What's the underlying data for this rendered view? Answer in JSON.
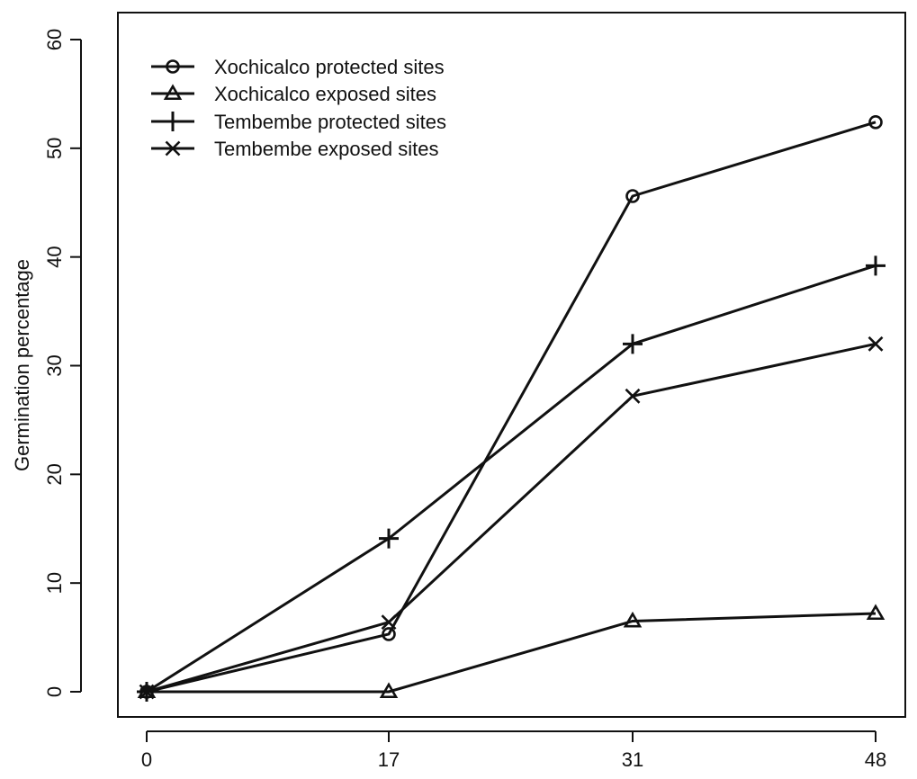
{
  "chart_data": {
    "type": "line",
    "title": "",
    "xlabel": "",
    "ylabel": "Germination percentage",
    "x": [
      0,
      17,
      31,
      48
    ],
    "x_tick_labels": [
      "0",
      "17",
      "31",
      "48"
    ],
    "ylim": [
      0,
      60
    ],
    "y_ticks": [
      0,
      10,
      20,
      30,
      40,
      50,
      60
    ],
    "y_tick_labels": [
      "0",
      "10",
      "20",
      "30",
      "40",
      "50",
      "60"
    ],
    "grid": false,
    "legend_position": "top-left",
    "series": [
      {
        "name": "Xochicalco protected sites",
        "marker": "circle",
        "values": [
          0,
          5.3,
          45.6,
          52.4
        ]
      },
      {
        "name": "Xochicalco exposed sites",
        "marker": "triangle",
        "values": [
          0,
          0,
          6.5,
          7.2
        ]
      },
      {
        "name": "Tembembe protected sites",
        "marker": "plus",
        "values": [
          0,
          14.1,
          32.0,
          39.2
        ]
      },
      {
        "name": "Tembembe exposed sites",
        "marker": "cross",
        "values": [
          0,
          6.4,
          27.2,
          32.0
        ]
      }
    ],
    "colors": {
      "line": "#111111",
      "background": "#ffffff"
    }
  }
}
